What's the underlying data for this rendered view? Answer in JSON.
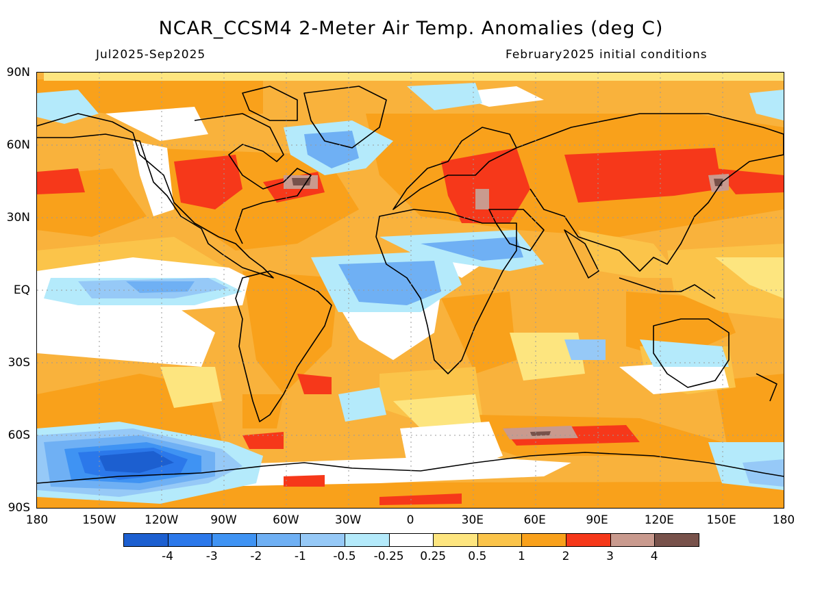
{
  "header": {
    "title": "NCAR_CCSM4 2-Meter Air Temp. Anomalies (deg C)",
    "period": "Jul2025-Sep2025",
    "init": "February2025 initial conditions"
  },
  "map": {
    "lat_labels": [
      "90N",
      "60N",
      "30N",
      "EQ",
      "30S",
      "60S",
      "90S"
    ],
    "lon_labels": [
      "180",
      "150W",
      "120W",
      "90W",
      "60W",
      "30W",
      "0",
      "30E",
      "60E",
      "90E",
      "120E",
      "150E",
      "180"
    ],
    "background_color": "#f9b23c",
    "grid": "dotted"
  },
  "colorbar": {
    "colors": [
      "#1c5fd0",
      "#2b78ea",
      "#3f93f3",
      "#6fb0f4",
      "#96c9f7",
      "#b4eafb",
      "#ffffff",
      "#fde57f",
      "#fbc44a",
      "#f9a11b",
      "#f6381a",
      "#c99a8e",
      "#78524b"
    ],
    "labels": [
      "-4",
      "-3",
      "-2",
      "-1",
      "-0.5",
      "-0.25",
      "0.25",
      "0.5",
      "1",
      "2",
      "3",
      "4"
    ]
  }
}
